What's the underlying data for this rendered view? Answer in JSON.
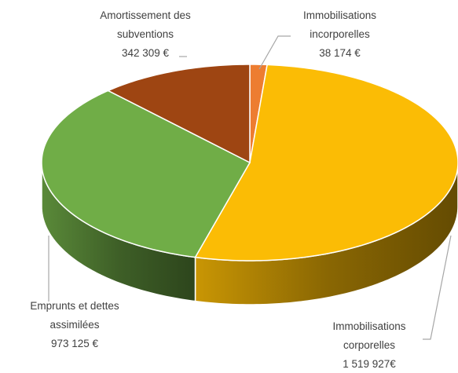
{
  "chart_data": {
    "type": "pie",
    "categories": [
      "Immobilisations incorporelles",
      "Immobilisations corporelles",
      "Emprunts et dettes assimilées",
      "Amortissement des subventions"
    ],
    "values": [
      38174,
      1519927,
      973125,
      342309
    ],
    "value_labels": [
      "38 174 €",
      "1 519 927€",
      "973 125 €",
      "342 309 €"
    ],
    "colors": [
      "#ed7d31",
      "#fbbc05",
      "#70ad47",
      "#9e4512"
    ]
  }
}
